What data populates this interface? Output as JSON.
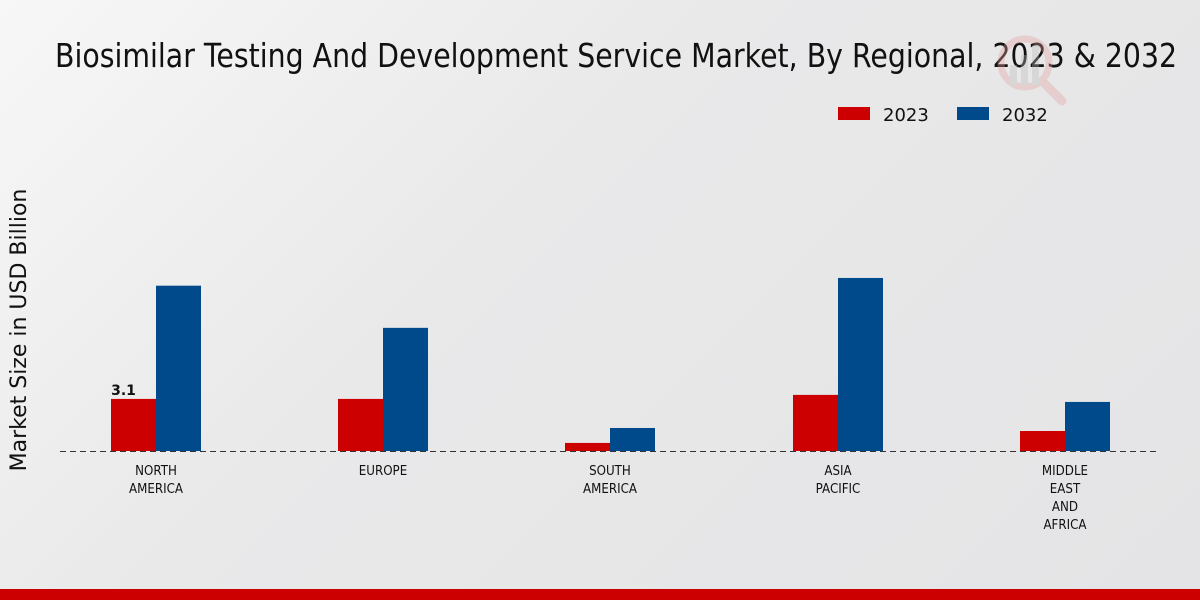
{
  "chart_data": {
    "type": "bar",
    "title": "Biosimilar Testing And Development Service Market, By Regional, 2023 & 2032",
    "xlabel": "",
    "ylabel": "Market Size in USD Billion",
    "categories": [
      [
        "NORTH",
        "AMERICA"
      ],
      [
        "EUROPE"
      ],
      [
        "SOUTH",
        "AMERICA"
      ],
      [
        "ASIA",
        "PACIFIC"
      ],
      [
        "MIDDLE",
        "EAST",
        "AND",
        "AFRICA"
      ]
    ],
    "series": [
      {
        "name": "2023",
        "color": "#cc0000",
        "values": [
          3.1,
          3.1,
          0.48,
          3.34,
          1.19
        ]
      },
      {
        "name": "2032",
        "color": "#004a8c",
        "values": [
          9.84,
          7.33,
          1.37,
          10.3,
          2.92
        ]
      }
    ],
    "data_labels": [
      {
        "series": 0,
        "index": 0,
        "text": "3.1"
      }
    ],
    "legend": "top-right",
    "grid": false
  }
}
